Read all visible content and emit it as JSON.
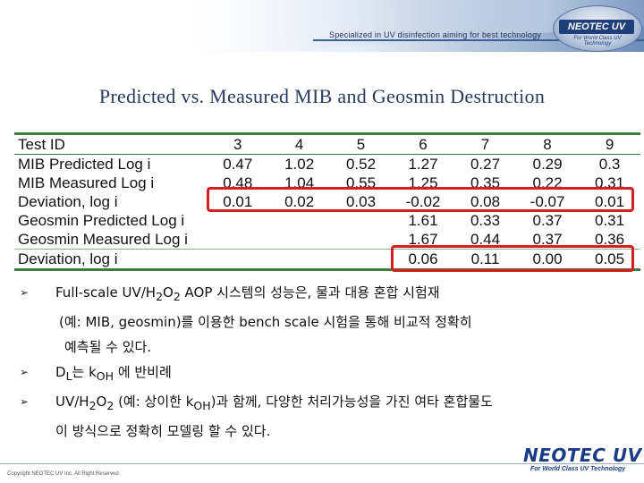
{
  "header": {
    "tagline": "Specialized in UV disinfection aiming for best technology",
    "logo_text": "NEOTEC UV",
    "logo_subtext": "For World Class UV Technology"
  },
  "title": "Predicted vs. Measured MIB and Geosmin Destruction",
  "table": {
    "header": [
      "Test ID",
      "3",
      "4",
      "5",
      "6",
      "7",
      "8",
      "9"
    ],
    "rows": [
      [
        "MIB Predicted Log i",
        "0.47",
        "1.02",
        "0.52",
        "1.27",
        "0.27",
        "0.29",
        "0.3"
      ],
      [
        "MIB Measured Log i",
        "0.48",
        "1.04",
        "0.55",
        "1.25",
        "0.35",
        "0.22",
        "0.31"
      ],
      [
        "Deviation, log i",
        "0.01",
        "0.02",
        "0.03",
        "-0.02",
        "0.08",
        "-0.07",
        "0.01"
      ],
      [
        "Geosmin Predicted Log i",
        "",
        "",
        "",
        "1.61",
        "0.33",
        "0.37",
        "0.31"
      ],
      [
        "Geosmin Measured Log i",
        "",
        "",
        "",
        "1.67",
        "0.44",
        "0.37",
        "0.36"
      ],
      [
        "Deviation, log i",
        "",
        "",
        "",
        "0.06",
        "0.11",
        "0.00",
        "0.05"
      ]
    ]
  },
  "bullets": {
    "b1_pre": "Full-scale UV/H",
    "b1_sub1": "2",
    "b1_mid": "O",
    "b1_sub2": "2",
    "b1_post": " AOP 시스템의 성능은, 물과 대용 혼합 시험재",
    "b1_line2": "(예: MIB, geosmin)를 이용한 bench scale 시험을 통해 비교적 정확히",
    "b1_line3": "예측될 수 있다.",
    "b2_pre": "D",
    "b2_sub1": "L",
    "b2_mid": "는 k",
    "b2_sub2": "OH",
    "b2_post": " 에 반비례",
    "b3_pre": "UV/H",
    "b3_sub1": "2",
    "b3_mid": "O",
    "b3_sub2": "2",
    "b3_mid2": " (예: 상이한 k",
    "b3_sub3": "OH",
    "b3_post": ")과 함께, 다양한 처리가능성을 가진 여타 혼합물도",
    "b3_line2": "이 방식으로 정확히 모델링 할 수 있다."
  },
  "footer": {
    "copyright": "Copyright NEOTEC UV Inc. All Right Reserved",
    "logo_text": "NEOTEC UV",
    "logo_subtext": "For World Class UV Technology"
  },
  "colors": {
    "rule_green": "#3f7d3a",
    "highlight_red": "#d81e1e",
    "brand_blue": "#1a3c86"
  }
}
